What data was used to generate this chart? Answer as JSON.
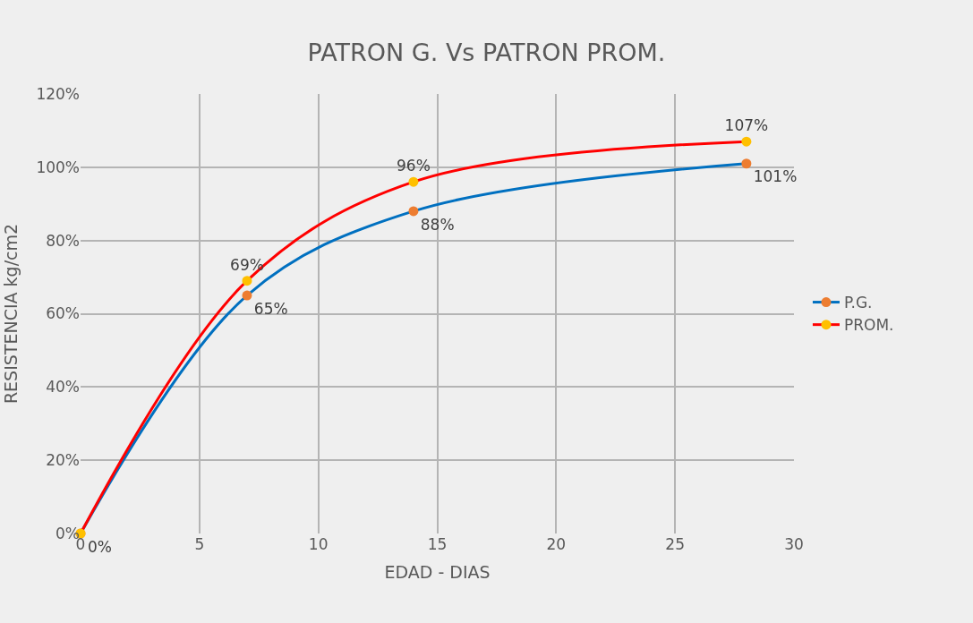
{
  "chart_data": {
    "type": "line",
    "title": "PATRON G. Vs PATRON PROM.",
    "xlabel": "EDAD - DIAS",
    "ylabel": "RESISTENCIA kg/cm2",
    "x": [
      0,
      7,
      14,
      28
    ],
    "series": [
      {
        "name": "P.G.",
        "color": "#0070c0",
        "colors": [
          "#ed7d31",
          "#ed7d31",
          "#ed7d31",
          "#ed7d31"
        ],
        "values": [
          0,
          65,
          88,
          101
        ],
        "value_labels": [
          "0%",
          "65%",
          "88%",
          "101%"
        ]
      },
      {
        "name": "PROM.",
        "color": "#ff0000",
        "colors": [
          "#ffc000",
          "#ffc000",
          "#ffc000",
          "#ffc000"
        ],
        "values": [
          0,
          69,
          96,
          107
        ],
        "value_labels": [
          null,
          "69%",
          "96%",
          "107%"
        ]
      }
    ],
    "xlim": [
      0,
      30
    ],
    "xticks": [
      0,
      5,
      10,
      15,
      20,
      25,
      30
    ],
    "ylim": [
      0,
      120
    ],
    "yticks": [
      {
        "value": 0,
        "label": "0%"
      },
      {
        "value": 20,
        "label": "20%"
      },
      {
        "value": 40,
        "label": "40%"
      },
      {
        "value": 60,
        "label": "60%"
      },
      {
        "value": 80,
        "label": "80%"
      },
      {
        "value": 100,
        "label": "100%"
      },
      {
        "value": 120,
        "label": "120%"
      }
    ],
    "grid": true,
    "legend": "right",
    "marker": "circle",
    "line_style": "solid"
  }
}
